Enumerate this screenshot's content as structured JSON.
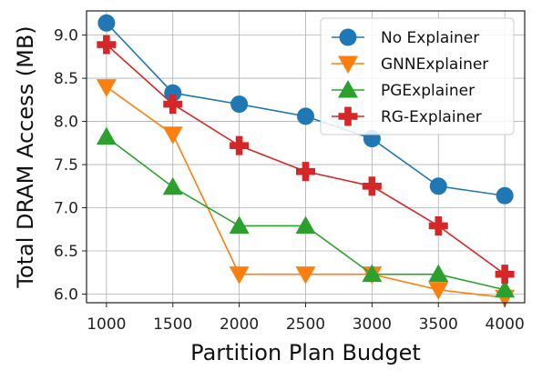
{
  "chart_data": {
    "type": "line",
    "title": "",
    "xlabel": "Partition Plan Budget",
    "ylabel": "Total DRAM Access (MB)",
    "x": [
      1000,
      1500,
      2000,
      2500,
      3000,
      3500,
      4000
    ],
    "xlim": [
      850,
      4150
    ],
    "ylim": [
      5.9,
      9.28
    ],
    "xticks": [
      "1000",
      "1500",
      "2000",
      "2500",
      "3000",
      "3500",
      "4000"
    ],
    "yticks": [
      "6.0",
      "6.5",
      "7.0",
      "7.5",
      "8.0",
      "8.5",
      "9.0"
    ],
    "grid": true,
    "legend_position": "top-right",
    "series": [
      {
        "name": "No Explainer",
        "color": "#1f77b4",
        "marker": "circle",
        "values": [
          9.14,
          8.33,
          8.2,
          8.06,
          7.8,
          7.25,
          7.14
        ]
      },
      {
        "name": "GNNExplainer",
        "color": "#ff7f0e",
        "marker": "triangle-down",
        "values": [
          8.4,
          7.85,
          6.23,
          6.23,
          6.23,
          6.05,
          5.96
        ]
      },
      {
        "name": "PGExplainer",
        "color": "#2ca02c",
        "marker": "triangle-up",
        "values": [
          7.82,
          7.24,
          6.79,
          6.79,
          6.23,
          6.23,
          6.05
        ]
      },
      {
        "name": "RG-Explainer",
        "color": "#d62728",
        "marker": "plus",
        "values": [
          8.89,
          8.2,
          7.72,
          7.42,
          7.25,
          6.79,
          6.23
        ]
      }
    ]
  }
}
